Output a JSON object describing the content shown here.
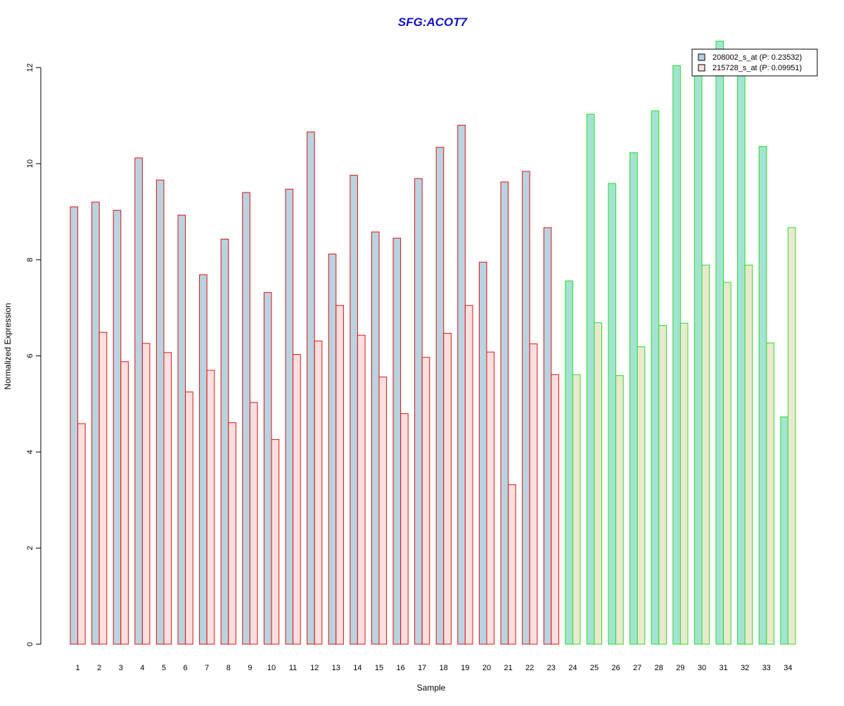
{
  "chart_data": {
    "type": "bar",
    "title": "SFG:ACOT7",
    "xlabel": "Sample",
    "ylabel": "Normalized Expression",
    "ylim": [
      0,
      12.6
    ],
    "yticks": [
      0,
      2,
      4,
      6,
      8,
      10,
      12
    ],
    "grid": false,
    "legend_position": "top-right",
    "categories": [
      "1",
      "2",
      "3",
      "4",
      "5",
      "6",
      "7",
      "8",
      "9",
      "10",
      "11",
      "12",
      "13",
      "14",
      "15",
      "16",
      "17",
      "18",
      "19",
      "20",
      "21",
      "22",
      "23",
      "24",
      "25",
      "26",
      "27",
      "28",
      "29",
      "30",
      "31",
      "32",
      "33",
      "34"
    ],
    "group_boundary_category": "24",
    "series": [
      {
        "name": "208002_s_at (P: 0.23532)",
        "values": [
          9.1,
          9.2,
          9.03,
          10.12,
          9.66,
          8.93,
          7.69,
          8.43,
          9.4,
          7.32,
          9.47,
          10.66,
          8.12,
          9.76,
          8.58,
          8.45,
          9.69,
          10.34,
          10.8,
          7.95,
          9.62,
          9.84,
          8.67,
          7.56,
          11.03,
          9.59,
          10.23,
          11.1,
          12.04,
          12.01,
          12.55,
          12.01,
          10.36,
          4.73
        ]
      },
      {
        "name": "215728_s_at (P: 0.09951)",
        "values": [
          4.59,
          6.49,
          5.88,
          6.26,
          6.07,
          5.25,
          5.7,
          4.61,
          5.03,
          4.26,
          6.03,
          6.31,
          7.05,
          6.43,
          5.56,
          4.8,
          5.97,
          6.47,
          7.05,
          6.08,
          3.32,
          6.25,
          5.61,
          5.61,
          6.69,
          5.59,
          6.19,
          6.63,
          6.68,
          7.89,
          7.53,
          7.89,
          6.27,
          8.67
        ]
      }
    ],
    "colors": {
      "title": "#1010c8",
      "series1_fill": "#b9d3e0",
      "series2_fill": "#fbe0df",
      "series1_fill_group2": "#a4e3d3",
      "series2_fill_group2": "#ece8d0",
      "border_group1": "#e01010",
      "border_group2": "#22e022",
      "legend_series1": "#b9d3e0",
      "legend_series2": "#fbe0df"
    }
  }
}
